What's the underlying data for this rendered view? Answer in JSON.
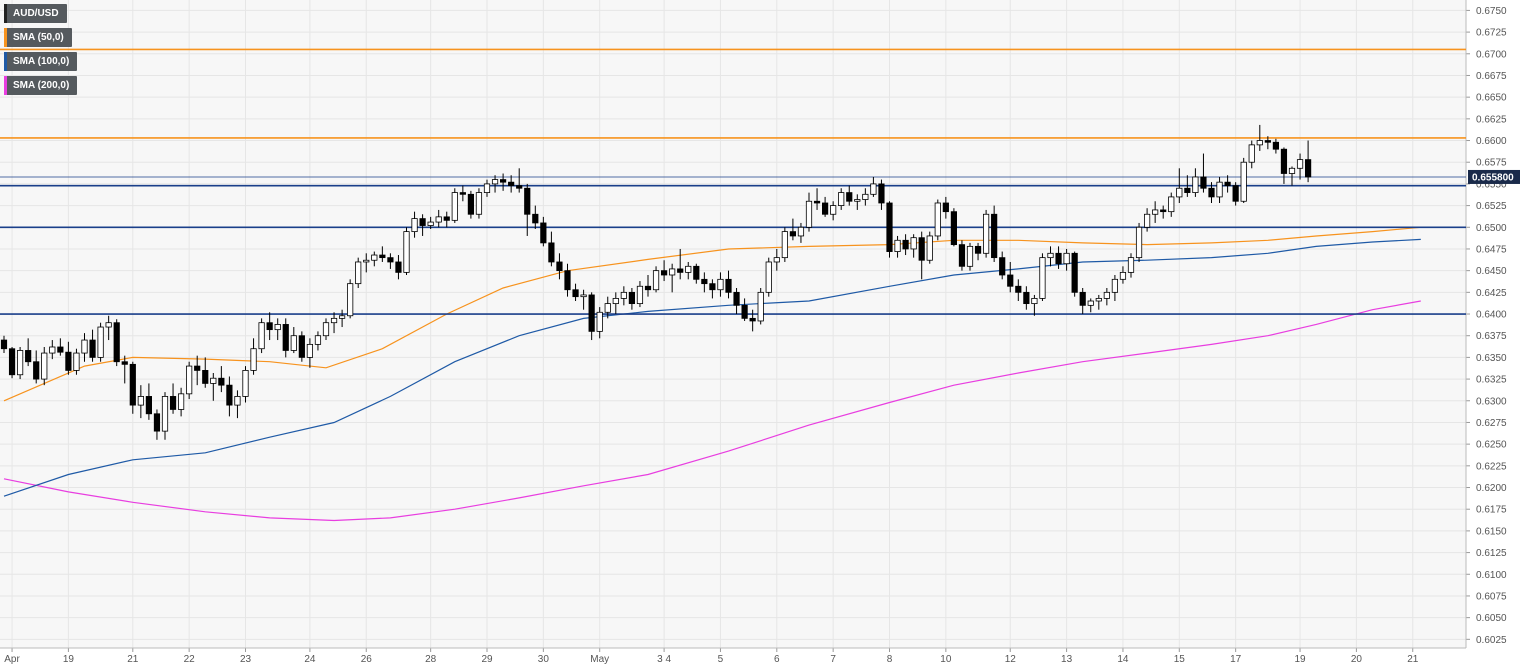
{
  "legend": [
    {
      "label": "AUD/USD",
      "color": "#222222"
    },
    {
      "label": "SMA (50,0)",
      "color": "#f7931e"
    },
    {
      "label": "SMA (100,0)",
      "color": "#1f5aa6"
    },
    {
      "label": "SMA (200,0)",
      "color": "#e83ee0"
    }
  ],
  "current_price_label": "0.655800",
  "colors": {
    "background": "#f7f7f7",
    "grid": "#e6e6e6",
    "up_candle": "#ffffff",
    "down_candle": "#000000",
    "candle_outline": "#000000",
    "sma50": "#f7931e",
    "sma100": "#1f5aa6",
    "sma200": "#e83ee0",
    "resistance_line": "#f7931e",
    "support_line": "#1a3f8a",
    "price_tag": "#1a2a4a"
  },
  "chart_data": {
    "type": "candlestick",
    "series_name": "AUD/USD",
    "ylim": [
      0.6015,
      0.6762
    ],
    "y_ticks": [
      "0.6750",
      "0.6725",
      "0.6700",
      "0.6675",
      "0.6650",
      "0.6625",
      "0.6600",
      "0.6575",
      "0.6550",
      "0.6525",
      "0.6500",
      "0.6475",
      "0.6450",
      "0.6425",
      "0.6400",
      "0.6375",
      "0.6350",
      "0.6325",
      "0.6300",
      "0.6275",
      "0.6250",
      "0.6225",
      "0.6200",
      "0.6175",
      "0.6150",
      "0.6125",
      "0.6100",
      "0.6075",
      "0.6050",
      "0.6025"
    ],
    "x_ticks": [
      {
        "label": "Apr",
        "index": 1
      },
      {
        "label": "19",
        "index": 8
      },
      {
        "label": "21",
        "index": 16
      },
      {
        "label": "22",
        "index": 23
      },
      {
        "label": "23",
        "index": 30
      },
      {
        "label": "24",
        "index": 38
      },
      {
        "label": "26",
        "index": 45
      },
      {
        "label": "28",
        "index": 53
      },
      {
        "label": "29",
        "index": 60
      },
      {
        "label": "30",
        "index": 67
      },
      {
        "label": "May",
        "index": 74
      },
      {
        "label": "3 4",
        "index": 82
      },
      {
        "label": "5",
        "index": 89
      },
      {
        "label": "6",
        "index": 96
      },
      {
        "label": "7",
        "index": 103
      },
      {
        "label": "8",
        "index": 110
      },
      {
        "label": "10",
        "index": 117
      },
      {
        "label": "12",
        "index": 125
      },
      {
        "label": "13",
        "index": 132
      },
      {
        "label": "14",
        "index": 139
      },
      {
        "label": "15",
        "index": 146
      },
      {
        "label": "17",
        "index": 153
      },
      {
        "label": "19",
        "index": 161
      },
      {
        "label": "20",
        "index": 168
      },
      {
        "label": "21",
        "index": 175
      }
    ],
    "candles": [
      [
        0.637,
        0.6375,
        0.6355,
        0.636
      ],
      [
        0.636,
        0.6362,
        0.6326,
        0.633
      ],
      [
        0.633,
        0.6362,
        0.6325,
        0.6358
      ],
      [
        0.6358,
        0.6372,
        0.634,
        0.6345
      ],
      [
        0.6345,
        0.6358,
        0.632,
        0.6325
      ],
      [
        0.6325,
        0.6362,
        0.6318,
        0.6355
      ],
      [
        0.6355,
        0.637,
        0.6348,
        0.6362
      ],
      [
        0.6362,
        0.6372,
        0.6352,
        0.6356
      ],
      [
        0.6356,
        0.6368,
        0.633,
        0.6335
      ],
      [
        0.6335,
        0.636,
        0.633,
        0.6355
      ],
      [
        0.6355,
        0.6378,
        0.6345,
        0.637
      ],
      [
        0.637,
        0.6382,
        0.6345,
        0.635
      ],
      [
        0.635,
        0.639,
        0.6345,
        0.6385
      ],
      [
        0.6385,
        0.6398,
        0.637,
        0.639
      ],
      [
        0.639,
        0.6394,
        0.634,
        0.6345
      ],
      [
        0.6345,
        0.6352,
        0.632,
        0.6342
      ],
      [
        0.6342,
        0.6345,
        0.6285,
        0.6295
      ],
      [
        0.6295,
        0.6318,
        0.628,
        0.6305
      ],
      [
        0.6305,
        0.632,
        0.6278,
        0.6285
      ],
      [
        0.6285,
        0.629,
        0.6255,
        0.6265
      ],
      [
        0.6265,
        0.631,
        0.6255,
        0.6305
      ],
      [
        0.6305,
        0.632,
        0.6285,
        0.629
      ],
      [
        0.629,
        0.6315,
        0.6282,
        0.6308
      ],
      [
        0.6308,
        0.6345,
        0.6302,
        0.634
      ],
      [
        0.634,
        0.6352,
        0.6318,
        0.6335
      ],
      [
        0.6335,
        0.635,
        0.6315,
        0.632
      ],
      [
        0.632,
        0.6332,
        0.63,
        0.6326
      ],
      [
        0.6326,
        0.634,
        0.631,
        0.6318
      ],
      [
        0.6318,
        0.6328,
        0.6282,
        0.6295
      ],
      [
        0.6295,
        0.6312,
        0.628,
        0.6305
      ],
      [
        0.6305,
        0.634,
        0.6298,
        0.6335
      ],
      [
        0.6335,
        0.6372,
        0.633,
        0.636
      ],
      [
        0.636,
        0.6395,
        0.6355,
        0.639
      ],
      [
        0.639,
        0.6402,
        0.637,
        0.6382
      ],
      [
        0.6382,
        0.6395,
        0.637,
        0.6388
      ],
      [
        0.6388,
        0.6395,
        0.635,
        0.6358
      ],
      [
        0.6358,
        0.6385,
        0.6355,
        0.6375
      ],
      [
        0.6375,
        0.638,
        0.6345,
        0.635
      ],
      [
        0.635,
        0.6372,
        0.6338,
        0.6365
      ],
      [
        0.6365,
        0.638,
        0.6358,
        0.6375
      ],
      [
        0.6375,
        0.6395,
        0.637,
        0.639
      ],
      [
        0.639,
        0.6402,
        0.6378,
        0.6395
      ],
      [
        0.6395,
        0.6405,
        0.6385,
        0.6398
      ],
      [
        0.6398,
        0.644,
        0.6395,
        0.6435
      ],
      [
        0.6435,
        0.6465,
        0.643,
        0.646
      ],
      [
        0.646,
        0.647,
        0.6448,
        0.6462
      ],
      [
        0.6462,
        0.6472,
        0.6455,
        0.6468
      ],
      [
        0.6468,
        0.6478,
        0.646,
        0.6465
      ],
      [
        0.6465,
        0.647,
        0.6452,
        0.646
      ],
      [
        0.646,
        0.6468,
        0.644,
        0.6448
      ],
      [
        0.6448,
        0.65,
        0.6445,
        0.6495
      ],
      [
        0.6495,
        0.6518,
        0.6488,
        0.651
      ],
      [
        0.651,
        0.6515,
        0.649,
        0.6502
      ],
      [
        0.6502,
        0.6512,
        0.6498,
        0.6506
      ],
      [
        0.6506,
        0.652,
        0.65,
        0.6512
      ],
      [
        0.6512,
        0.6518,
        0.65,
        0.6508
      ],
      [
        0.6508,
        0.6545,
        0.6505,
        0.654
      ],
      [
        0.654,
        0.6548,
        0.653,
        0.6538
      ],
      [
        0.6538,
        0.6542,
        0.651,
        0.6515
      ],
      [
        0.6515,
        0.6545,
        0.651,
        0.654
      ],
      [
        0.654,
        0.6555,
        0.6535,
        0.655
      ],
      [
        0.655,
        0.656,
        0.654,
        0.6555
      ],
      [
        0.6555,
        0.6562,
        0.6542,
        0.6552
      ],
      [
        0.6552,
        0.656,
        0.654,
        0.6548
      ],
      [
        0.6548,
        0.6568,
        0.654,
        0.6545
      ],
      [
        0.6545,
        0.655,
        0.649,
        0.6515
      ],
      [
        0.6515,
        0.6525,
        0.6498,
        0.6505
      ],
      [
        0.6505,
        0.6512,
        0.6478,
        0.6482
      ],
      [
        0.6482,
        0.6495,
        0.6455,
        0.646
      ],
      [
        0.646,
        0.647,
        0.644,
        0.645
      ],
      [
        0.645,
        0.6458,
        0.642,
        0.6428
      ],
      [
        0.6428,
        0.6435,
        0.6415,
        0.642
      ],
      [
        0.642,
        0.6428,
        0.6405,
        0.6422
      ],
      [
        0.6422,
        0.6425,
        0.637,
        0.638
      ],
      [
        0.638,
        0.6408,
        0.6372,
        0.6402
      ],
      [
        0.6402,
        0.642,
        0.6395,
        0.6412
      ],
      [
        0.6412,
        0.6425,
        0.64,
        0.6418
      ],
      [
        0.6418,
        0.6432,
        0.641,
        0.6425
      ],
      [
        0.6425,
        0.643,
        0.6405,
        0.6412
      ],
      [
        0.6412,
        0.6438,
        0.6408,
        0.6432
      ],
      [
        0.6432,
        0.6445,
        0.642,
        0.6428
      ],
      [
        0.6428,
        0.6455,
        0.6425,
        0.645
      ],
      [
        0.645,
        0.6462,
        0.6438,
        0.6445
      ],
      [
        0.6445,
        0.6458,
        0.6425,
        0.6452
      ],
      [
        0.6452,
        0.6475,
        0.644,
        0.6448
      ],
      [
        0.6448,
        0.646,
        0.644,
        0.6455
      ],
      [
        0.6455,
        0.6458,
        0.6435,
        0.644
      ],
      [
        0.644,
        0.6448,
        0.6425,
        0.6435
      ],
      [
        0.6435,
        0.644,
        0.6418,
        0.6428
      ],
      [
        0.6428,
        0.6448,
        0.642,
        0.644
      ],
      [
        0.644,
        0.645,
        0.6418,
        0.6425
      ],
      [
        0.6425,
        0.643,
        0.64,
        0.641
      ],
      [
        0.641,
        0.6418,
        0.6392,
        0.6395
      ],
      [
        0.6395,
        0.6405,
        0.638,
        0.6392
      ],
      [
        0.6392,
        0.643,
        0.6388,
        0.6425
      ],
      [
        0.6425,
        0.6465,
        0.642,
        0.646
      ],
      [
        0.646,
        0.6475,
        0.645,
        0.6465
      ],
      [
        0.6465,
        0.65,
        0.646,
        0.6495
      ],
      [
        0.6495,
        0.651,
        0.6485,
        0.649
      ],
      [
        0.649,
        0.6505,
        0.6482,
        0.65
      ],
      [
        0.65,
        0.654,
        0.6495,
        0.653
      ],
      [
        0.653,
        0.6545,
        0.652,
        0.6528
      ],
      [
        0.6528,
        0.6535,
        0.6512,
        0.6515
      ],
      [
        0.6515,
        0.653,
        0.6508,
        0.6525
      ],
      [
        0.6525,
        0.6545,
        0.652,
        0.654
      ],
      [
        0.654,
        0.6548,
        0.6525,
        0.653
      ],
      [
        0.653,
        0.6538,
        0.652,
        0.6532
      ],
      [
        0.6532,
        0.6545,
        0.6525,
        0.6538
      ],
      [
        0.6538,
        0.6558,
        0.6535,
        0.655
      ],
      [
        0.655,
        0.6555,
        0.652,
        0.6528
      ],
      [
        0.6528,
        0.653,
        0.6465,
        0.6472
      ],
      [
        0.6472,
        0.649,
        0.6465,
        0.6485
      ],
      [
        0.6485,
        0.6492,
        0.6468,
        0.6475
      ],
      [
        0.6475,
        0.6492,
        0.6465,
        0.6488
      ],
      [
        0.6488,
        0.6495,
        0.644,
        0.6462
      ],
      [
        0.6462,
        0.6495,
        0.6458,
        0.649
      ],
      [
        0.649,
        0.6532,
        0.6485,
        0.6528
      ],
      [
        0.6528,
        0.6535,
        0.651,
        0.6518
      ],
      [
        0.6518,
        0.6522,
        0.6478,
        0.648
      ],
      [
        0.648,
        0.6485,
        0.645,
        0.6455
      ],
      [
        0.6455,
        0.6482,
        0.645,
        0.6478
      ],
      [
        0.6478,
        0.6482,
        0.6462,
        0.647
      ],
      [
        0.647,
        0.652,
        0.6465,
        0.6515
      ],
      [
        0.6515,
        0.6525,
        0.646,
        0.6465
      ],
      [
        0.6465,
        0.6472,
        0.644,
        0.6445
      ],
      [
        0.6445,
        0.646,
        0.6425,
        0.6432
      ],
      [
        0.6432,
        0.644,
        0.6415,
        0.6425
      ],
      [
        0.6425,
        0.6432,
        0.6405,
        0.6412
      ],
      [
        0.6412,
        0.6422,
        0.6398,
        0.6418
      ],
      [
        0.6418,
        0.647,
        0.6415,
        0.6465
      ],
      [
        0.6465,
        0.6478,
        0.6455,
        0.647
      ],
      [
        0.647,
        0.6478,
        0.6452,
        0.6458
      ],
      [
        0.6458,
        0.6475,
        0.645,
        0.647
      ],
      [
        0.647,
        0.6472,
        0.642,
        0.6425
      ],
      [
        0.6425,
        0.643,
        0.64,
        0.641
      ],
      [
        0.641,
        0.6418,
        0.6402,
        0.6415
      ],
      [
        0.6415,
        0.6422,
        0.6405,
        0.6418
      ],
      [
        0.6418,
        0.643,
        0.641,
        0.6425
      ],
      [
        0.6425,
        0.6445,
        0.6415,
        0.644
      ],
      [
        0.644,
        0.6455,
        0.6435,
        0.6448
      ],
      [
        0.6448,
        0.647,
        0.6442,
        0.6465
      ],
      [
        0.6465,
        0.6505,
        0.646,
        0.65
      ],
      [
        0.65,
        0.6522,
        0.6495,
        0.6515
      ],
      [
        0.6515,
        0.653,
        0.6505,
        0.652
      ],
      [
        0.652,
        0.6525,
        0.651,
        0.6518
      ],
      [
        0.6518,
        0.654,
        0.6512,
        0.6535
      ],
      [
        0.6535,
        0.6568,
        0.6528,
        0.6545
      ],
      [
        0.6545,
        0.656,
        0.6535,
        0.654
      ],
      [
        0.654,
        0.6568,
        0.6535,
        0.6558
      ],
      [
        0.6558,
        0.6585,
        0.654,
        0.6545
      ],
      [
        0.6545,
        0.6552,
        0.6528,
        0.6535
      ],
      [
        0.6535,
        0.6558,
        0.6528,
        0.6552
      ],
      [
        0.6552,
        0.656,
        0.654,
        0.6548
      ],
      [
        0.6548,
        0.6552,
        0.6525,
        0.653
      ],
      [
        0.653,
        0.658,
        0.6528,
        0.6575
      ],
      [
        0.6575,
        0.66,
        0.6568,
        0.6595
      ],
      [
        0.6595,
        0.6618,
        0.6588,
        0.66
      ],
      [
        0.66,
        0.6605,
        0.659,
        0.6598
      ],
      [
        0.6598,
        0.6602,
        0.6585,
        0.659
      ],
      [
        0.659,
        0.6592,
        0.655,
        0.6562
      ],
      [
        0.6562,
        0.657,
        0.6548,
        0.6568
      ],
      [
        0.6568,
        0.6585,
        0.6555,
        0.6578
      ],
      [
        0.6578,
        0.66,
        0.6552,
        0.6558
      ]
    ],
    "sma50": [
      [
        0,
        0.63
      ],
      [
        10,
        0.634
      ],
      [
        16,
        0.635
      ],
      [
        25,
        0.6348
      ],
      [
        33,
        0.6345
      ],
      [
        40,
        0.6338
      ],
      [
        47,
        0.636
      ],
      [
        55,
        0.64
      ],
      [
        62,
        0.643
      ],
      [
        70,
        0.645
      ],
      [
        80,
        0.6463
      ],
      [
        90,
        0.6475
      ],
      [
        100,
        0.6478
      ],
      [
        110,
        0.648
      ],
      [
        118,
        0.6485
      ],
      [
        126,
        0.6485
      ],
      [
        134,
        0.6482
      ],
      [
        142,
        0.648
      ],
      [
        150,
        0.6482
      ],
      [
        157,
        0.6485
      ],
      [
        163,
        0.649
      ],
      [
        170,
        0.6495
      ],
      [
        176,
        0.65
      ]
    ],
    "sma100": [
      [
        0,
        0.619
      ],
      [
        8,
        0.6215
      ],
      [
        16,
        0.6232
      ],
      [
        25,
        0.624
      ],
      [
        33,
        0.6258
      ],
      [
        41,
        0.6275
      ],
      [
        48,
        0.6305
      ],
      [
        56,
        0.6345
      ],
      [
        64,
        0.6375
      ],
      [
        72,
        0.6395
      ],
      [
        80,
        0.6403
      ],
      [
        90,
        0.641
      ],
      [
        100,
        0.6415
      ],
      [
        110,
        0.6432
      ],
      [
        118,
        0.6445
      ],
      [
        126,
        0.6452
      ],
      [
        134,
        0.646
      ],
      [
        142,
        0.6462
      ],
      [
        150,
        0.6465
      ],
      [
        157,
        0.647
      ],
      [
        163,
        0.6478
      ],
      [
        170,
        0.6483
      ],
      [
        176,
        0.6486
      ]
    ],
    "sma200": [
      [
        0,
        0.621
      ],
      [
        8,
        0.6195
      ],
      [
        16,
        0.6183
      ],
      [
        25,
        0.6172
      ],
      [
        33,
        0.6165
      ],
      [
        41,
        0.6162
      ],
      [
        48,
        0.6165
      ],
      [
        56,
        0.6175
      ],
      [
        64,
        0.6188
      ],
      [
        72,
        0.6202
      ],
      [
        80,
        0.6215
      ],
      [
        90,
        0.6242
      ],
      [
        100,
        0.6272
      ],
      [
        110,
        0.6298
      ],
      [
        118,
        0.6318
      ],
      [
        126,
        0.6332
      ],
      [
        134,
        0.6345
      ],
      [
        142,
        0.6355
      ],
      [
        150,
        0.6365
      ],
      [
        157,
        0.6375
      ],
      [
        163,
        0.6388
      ],
      [
        170,
        0.6405
      ],
      [
        176,
        0.6415
      ]
    ],
    "horizontal_lines": [
      {
        "value": 0.6705,
        "kind": "resistance"
      },
      {
        "value": 0.6603,
        "kind": "resistance"
      },
      {
        "value": 0.6558,
        "kind": "current"
      },
      {
        "value": 0.6548,
        "kind": "support"
      },
      {
        "value": 0.65,
        "kind": "support"
      },
      {
        "value": 0.64,
        "kind": "support"
      }
    ]
  }
}
